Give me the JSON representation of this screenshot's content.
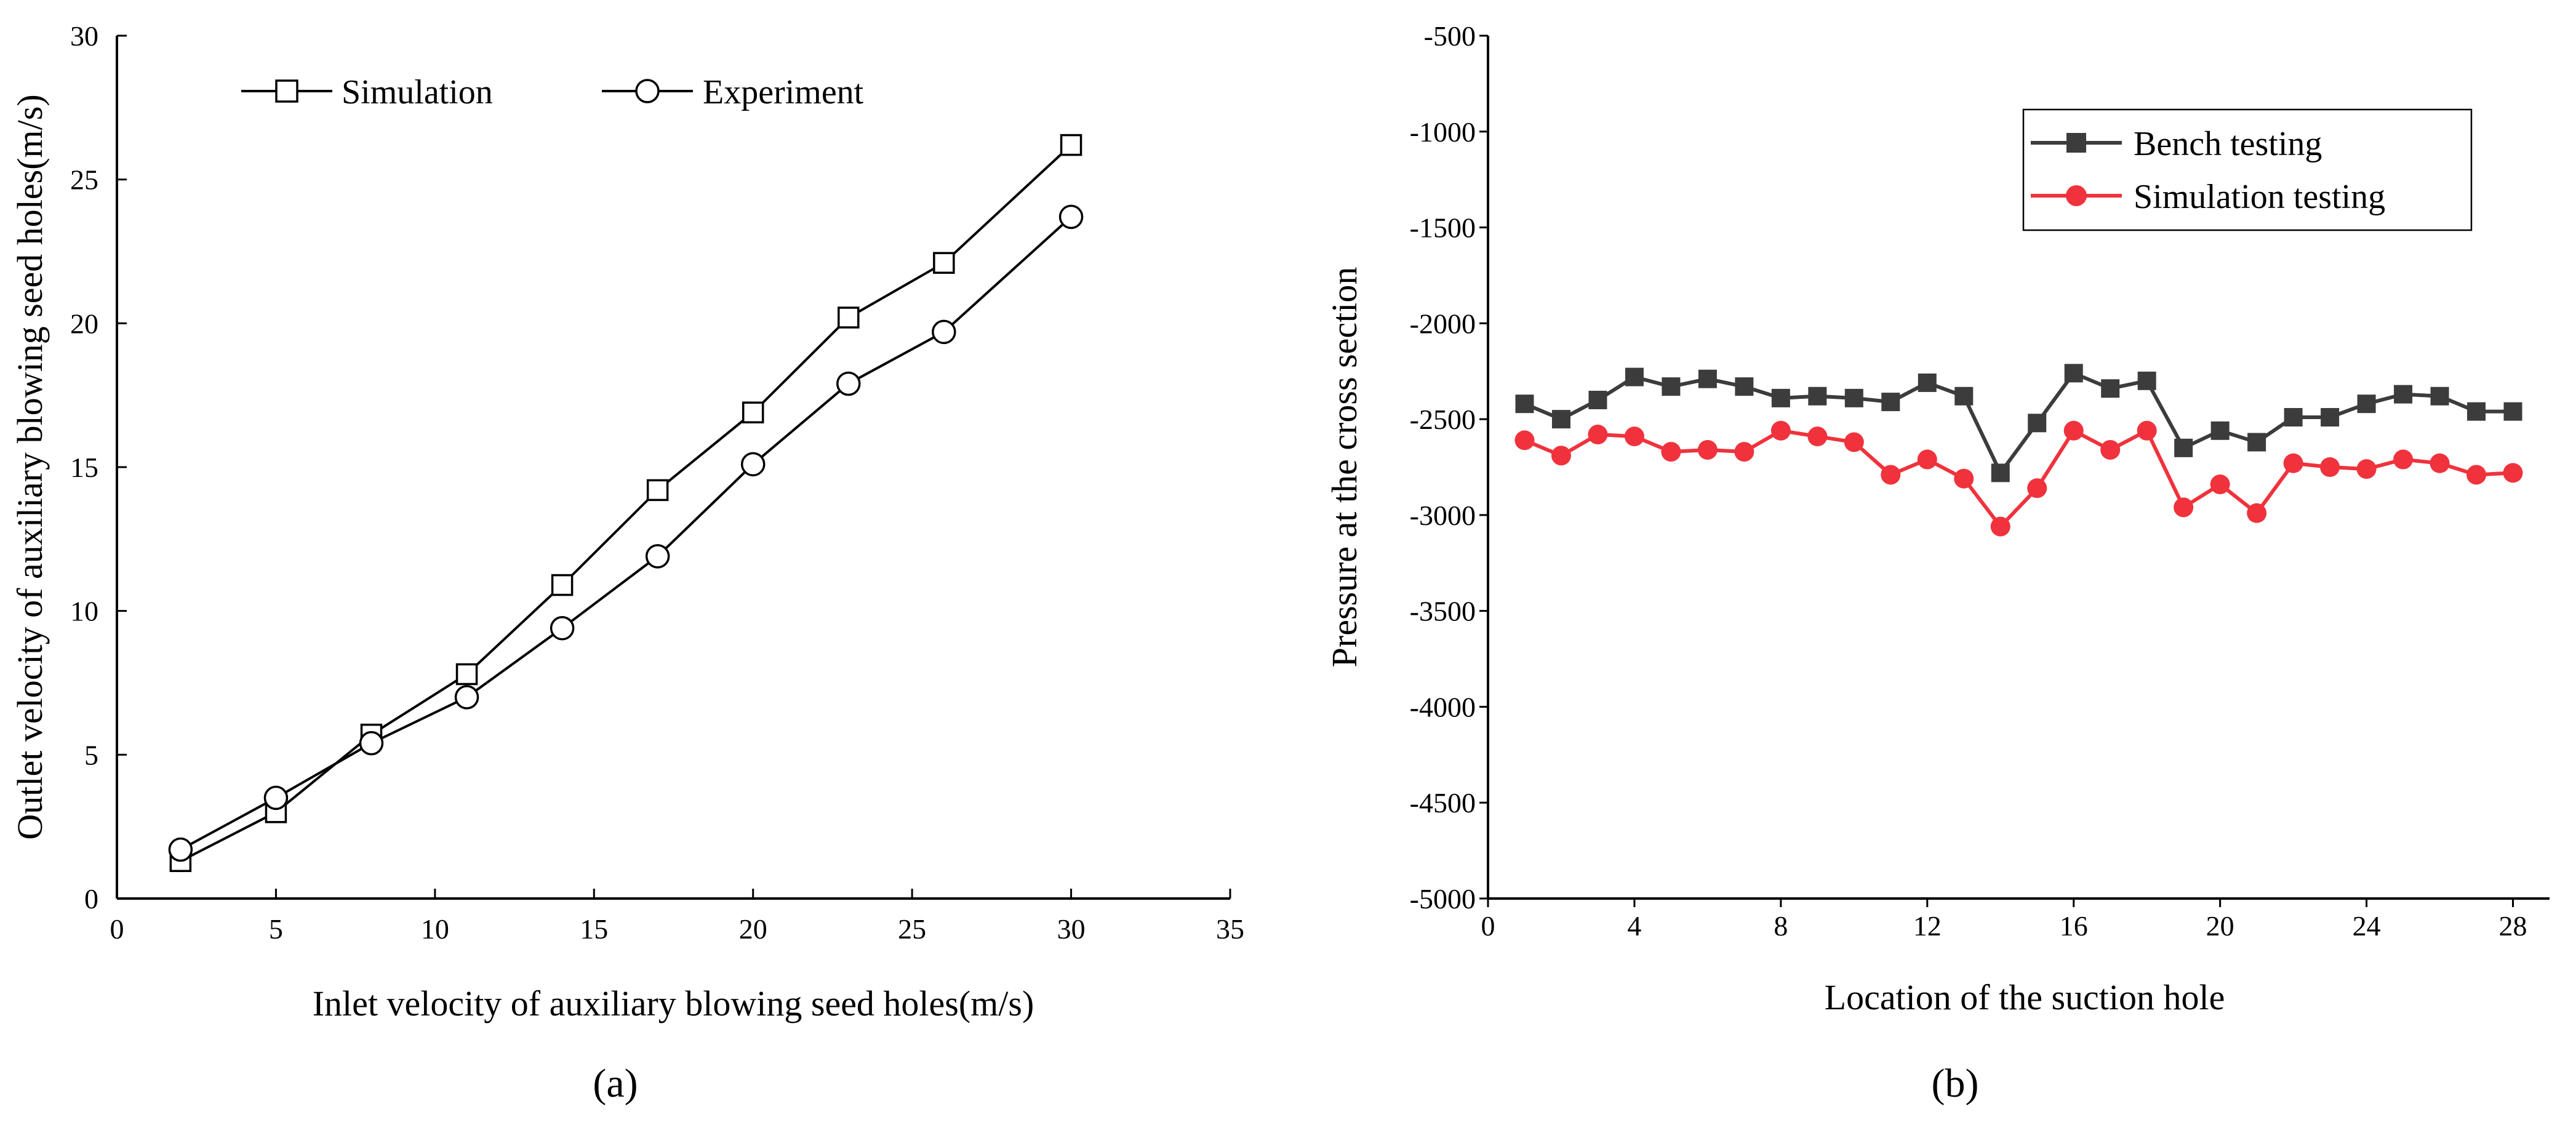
{
  "chart_data": [
    {
      "type": "line",
      "panel_label": "(a)",
      "title": "",
      "xlabel": "Inlet velocity of auxiliary blowing seed holes(m/s)",
      "ylabel": "Outlet velocity of auxiliary blowing seed holes(m/s)",
      "xlim": [
        0,
        35
      ],
      "ylim": [
        0,
        30
      ],
      "xticks": [
        "0",
        "5",
        "10",
        "15",
        "20",
        "25",
        "30",
        "35"
      ],
      "yticks": [
        "0",
        "5",
        "10",
        "15",
        "20",
        "25",
        "30"
      ],
      "grid": false,
      "legend_position": "top-left",
      "x": [
        2,
        5,
        8,
        11,
        14,
        17,
        20,
        23,
        26,
        30
      ],
      "series": [
        {
          "name": "Simulation",
          "marker": "square",
          "color": "#000000",
          "values": [
            1.3,
            3.0,
            5.7,
            7.8,
            10.9,
            14.2,
            16.9,
            20.2,
            22.1,
            26.2
          ]
        },
        {
          "name": "Experiment",
          "marker": "circle",
          "color": "#000000",
          "values": [
            1.7,
            3.5,
            5.4,
            7.0,
            9.4,
            11.9,
            15.1,
            17.9,
            19.7,
            23.7
          ]
        }
      ]
    },
    {
      "type": "line",
      "panel_label": "(b)",
      "title": "",
      "xlabel": "Location of the suction hole",
      "ylabel": "Pressure at the cross section",
      "xlim": [
        0,
        29
      ],
      "ylim": [
        -5000,
        -500
      ],
      "xticks": [
        "0",
        "4",
        "8",
        "12",
        "16",
        "20",
        "24",
        "28"
      ],
      "yticks": [
        "-5000",
        "-4500",
        "-4000",
        "-3500",
        "-3000",
        "-2500",
        "-2000",
        "-1500",
        "-1000",
        "-500"
      ],
      "grid": false,
      "legend_position": "top-right",
      "x": [
        1,
        2,
        3,
        4,
        5,
        6,
        7,
        8,
        9,
        10,
        11,
        12,
        13,
        14,
        15,
        16,
        17,
        18,
        19,
        20,
        21,
        22,
        23,
        24,
        25,
        26,
        27,
        28
      ],
      "series": [
        {
          "name": "Bench testing",
          "marker": "square",
          "color": "#3c3c3c",
          "values": [
            -2420,
            -2500,
            -2400,
            -2280,
            -2330,
            -2290,
            -2330,
            -2390,
            -2380,
            -2390,
            -2410,
            -2310,
            -2380,
            -2780,
            -2520,
            -2260,
            -2340,
            -2300,
            -2650,
            -2560,
            -2620,
            -2490,
            -2490,
            -2420,
            -2370,
            -2380,
            -2460,
            -2460
          ]
        },
        {
          "name": "Simulation testing",
          "marker": "circle",
          "color": "#f0323c",
          "values": [
            -2610,
            -2690,
            -2580,
            -2590,
            -2670,
            -2660,
            -2670,
            -2560,
            -2590,
            -2620,
            -2790,
            -2710,
            -2810,
            -3060,
            -2860,
            -2560,
            -2660,
            -2560,
            -2960,
            -2840,
            -2990,
            -2730,
            -2750,
            -2760,
            -2710,
            -2730,
            -2790,
            -2780
          ]
        }
      ]
    }
  ]
}
